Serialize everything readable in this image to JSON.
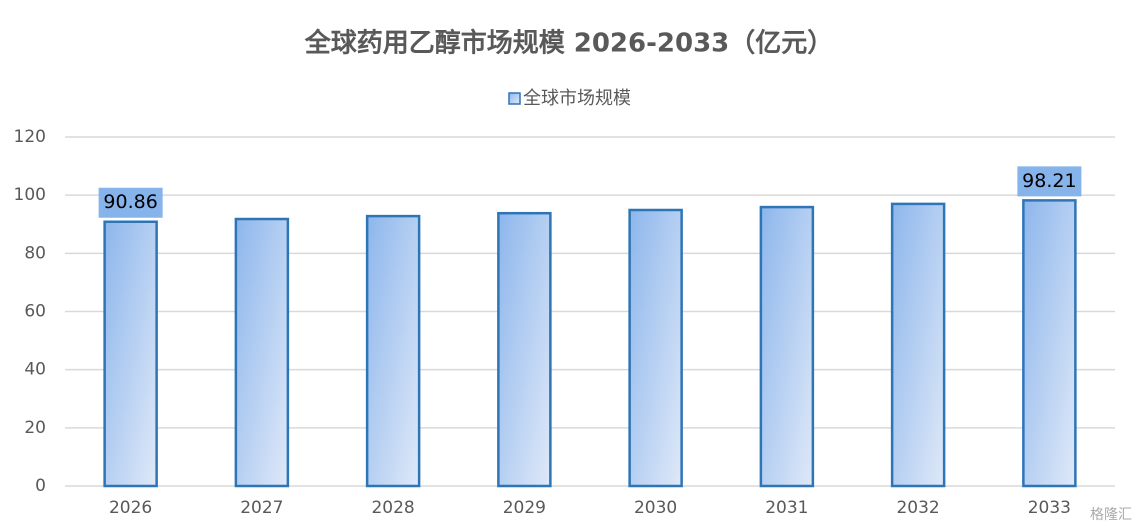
{
  "chart_data": {
    "type": "bar",
    "title": "全球药用乙醇市场规模 2026-2033（亿元）",
    "categories": [
      "2026",
      "2027",
      "2028",
      "2029",
      "2030",
      "2031",
      "2032",
      "2033"
    ],
    "series": [
      {
        "name": "全球市场规模",
        "color": "#2e75b6",
        "values": [
          90.86,
          91.8,
          92.8,
          93.8,
          94.9,
          95.9,
          97.0,
          98.21
        ]
      }
    ],
    "data_labels": "ends",
    "ylim": [
      0,
      120
    ],
    "yticks": [
      0,
      20,
      40,
      60,
      80,
      100,
      120
    ],
    "grid": true,
    "legend": "top"
  },
  "watermark": "格隆汇"
}
